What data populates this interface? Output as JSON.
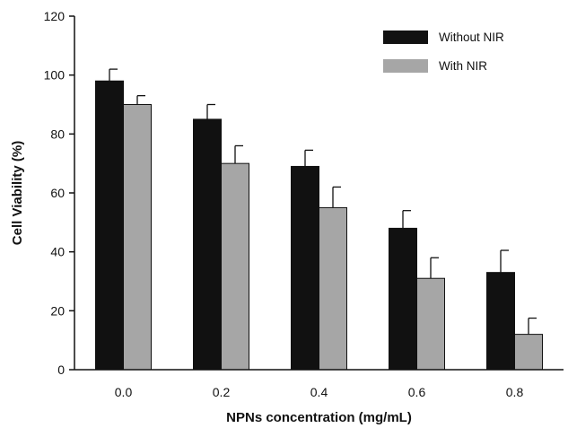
{
  "chart_data": {
    "type": "bar",
    "title": "",
    "xlabel": "NPNs concentration (mg/mL)",
    "ylabel": "Cell Viability (%)",
    "categories": [
      "0.0",
      "0.2",
      "0.4",
      "0.6",
      "0.8"
    ],
    "ylim": [
      0,
      120
    ],
    "yticks": [
      "0",
      "20",
      "40",
      "60",
      "80",
      "100",
      "120"
    ],
    "grid": false,
    "legend_position": "top-right",
    "series": [
      {
        "name": "Without NIR",
        "color": "#111111",
        "values": [
          98,
          85,
          69,
          48,
          33
        ],
        "error": [
          4,
          5,
          5.5,
          6,
          7.5
        ]
      },
      {
        "name": "With NIR",
        "color": "#a6a6a6",
        "values": [
          90,
          70,
          55,
          31,
          12
        ],
        "error": [
          3,
          6,
          7,
          7,
          5.5
        ]
      }
    ]
  }
}
